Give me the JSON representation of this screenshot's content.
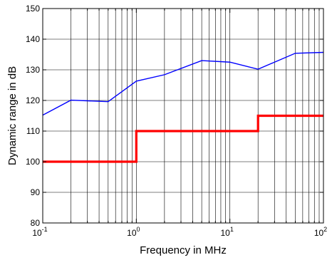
{
  "chart_data": {
    "type": "line",
    "xlabel": "Frequency in MHz",
    "ylabel": "Dynamic range in dB",
    "xscale": "log",
    "xlim": [
      0.1,
      100
    ],
    "ylim": [
      80,
      150
    ],
    "grid": true,
    "x_ticks": [
      {
        "value": 0.1,
        "base": "10",
        "exp": "-1"
      },
      {
        "value": 1,
        "base": "10",
        "exp": "0"
      },
      {
        "value": 10,
        "base": "10",
        "exp": "1"
      },
      {
        "value": 100,
        "base": "10",
        "exp": "2"
      }
    ],
    "y_ticks": [
      80,
      90,
      100,
      110,
      120,
      130,
      140,
      150
    ],
    "series": [
      {
        "color": "#0000ff",
        "x": [
          0.1,
          0.2,
          0.5,
          1,
          2,
          5,
          10,
          20,
          50,
          100
        ],
        "y": [
          115.2,
          120.1,
          119.6,
          126.3,
          128.4,
          133,
          132.5,
          130.2,
          135.4,
          135.7
        ]
      },
      {
        "color": "#ff0000",
        "step": true,
        "x": [
          0.1,
          1,
          1,
          20,
          20,
          100
        ],
        "y": [
          100,
          100,
          110,
          110,
          115,
          115
        ]
      }
    ]
  }
}
